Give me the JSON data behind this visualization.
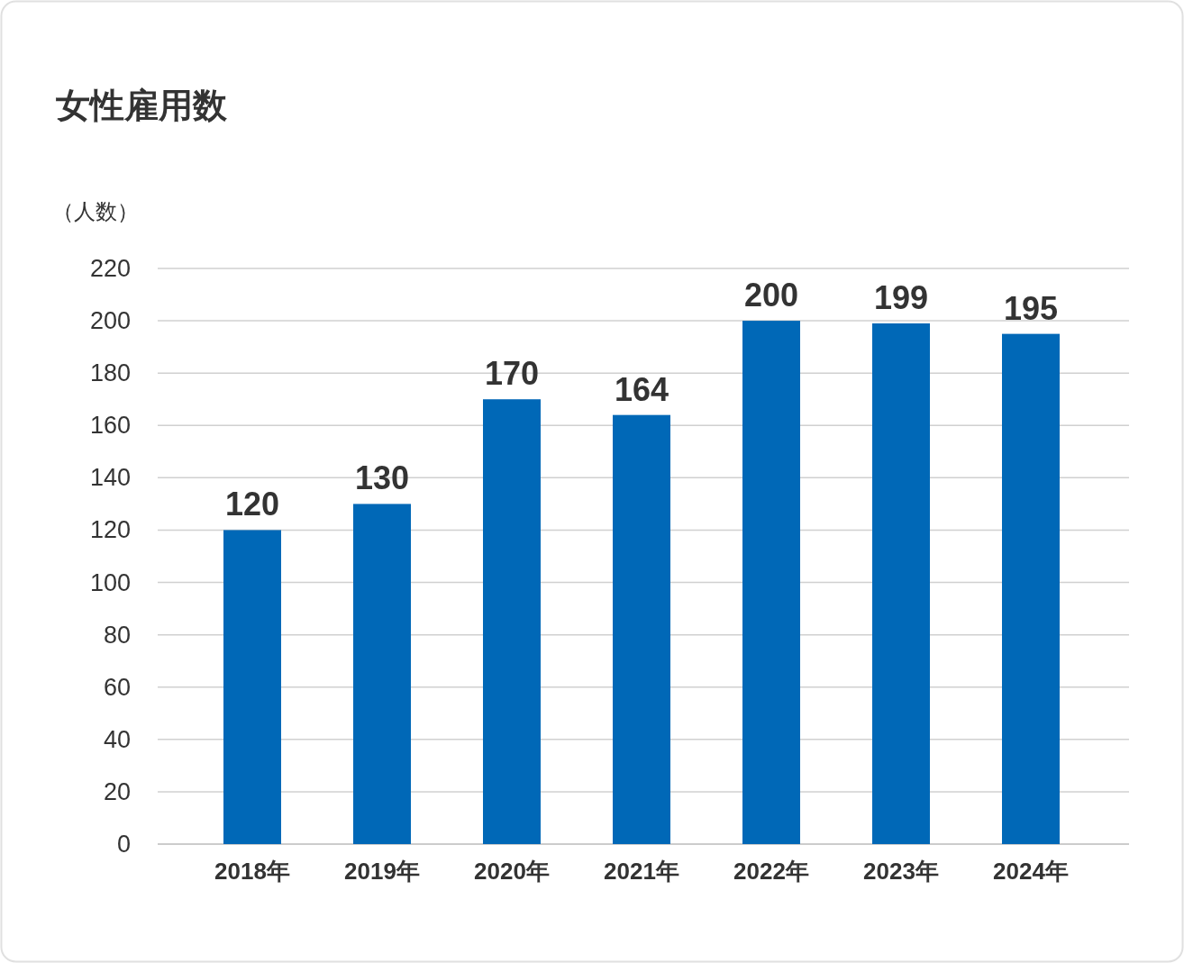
{
  "chart_data": {
    "type": "bar",
    "title": "女性雇用数",
    "ylabel": "（人数）",
    "categories": [
      "2018年",
      "2019年",
      "2020年",
      "2021年",
      "2022年",
      "2023年",
      "2024年"
    ],
    "values": [
      120,
      130,
      170,
      164,
      200,
      199,
      195
    ],
    "color": "#0068b7",
    "ylim": [
      0,
      220
    ],
    "yticks": [
      0,
      20,
      40,
      60,
      80,
      100,
      120,
      140,
      160,
      180,
      200,
      220
    ],
    "grid": "y",
    "data_labels": true
  }
}
